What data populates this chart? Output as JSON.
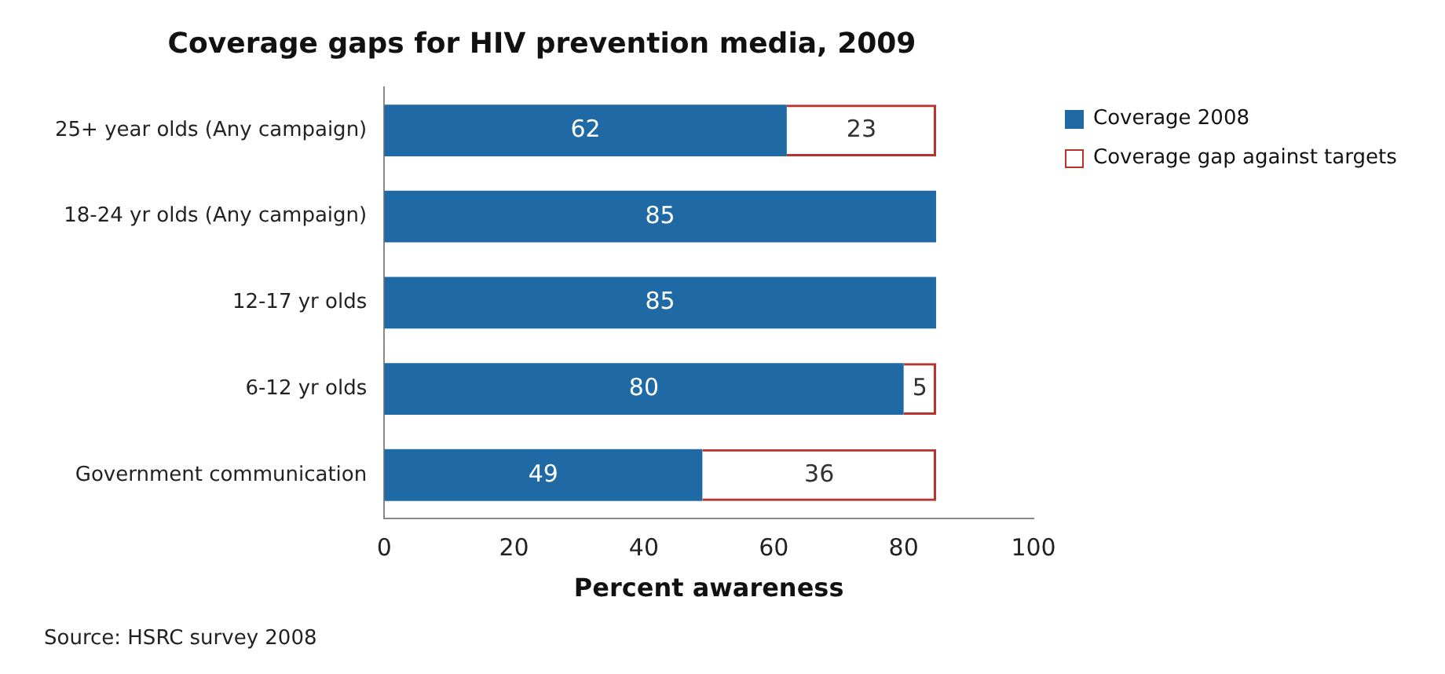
{
  "chart_data": {
    "type": "bar",
    "orientation": "horizontal",
    "stacked": true,
    "title": "Coverage gaps for HIV prevention media, 2009",
    "xlabel": "Percent awareness",
    "categories": [
      "25+ year olds (Any campaign)",
      "18-24 yr olds (Any campaign)",
      "12-17 yr olds",
      "6-12 yr olds",
      "Government communication"
    ],
    "series": [
      {
        "name": "Coverage 2008",
        "color": "#1f6aa5",
        "values": [
          62,
          85,
          85,
          80,
          49
        ]
      },
      {
        "name": "Coverage gap against targets",
        "color": "#b8332e",
        "values": [
          23,
          null,
          null,
          5,
          36
        ]
      }
    ],
    "data_labels": true,
    "xlim": [
      0,
      100
    ],
    "xticks": [
      0,
      20,
      40,
      60,
      80,
      100
    ],
    "grid": false,
    "legend": "right",
    "annotations": [
      "Source: HSRC survey 2008"
    ]
  }
}
